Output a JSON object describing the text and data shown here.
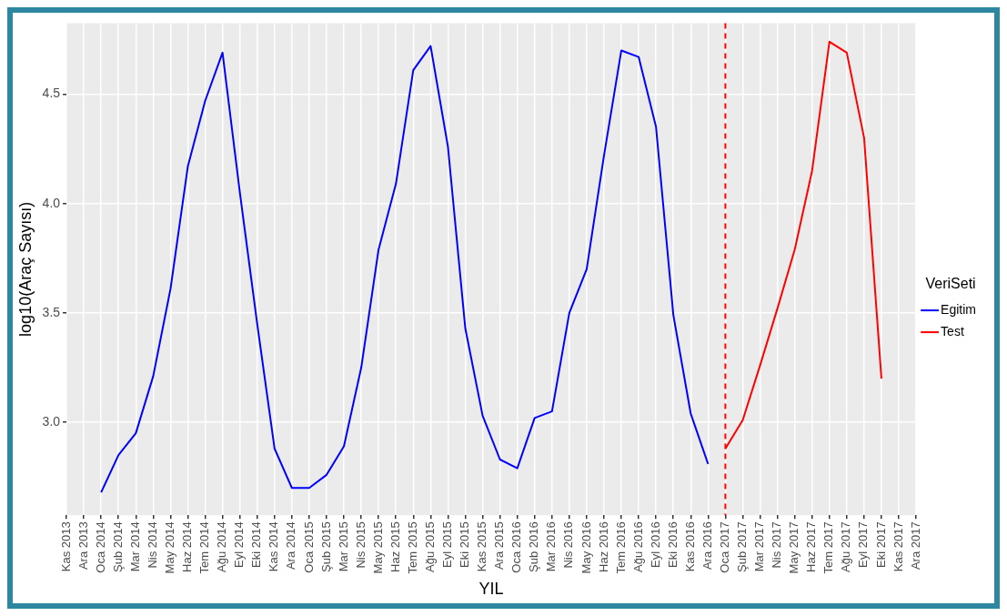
{
  "chart_data": {
    "type": "line",
    "xlabel": "YIL",
    "ylabel": "log10(Araç Sayısı)",
    "legend_title": "VeriSeti",
    "legend": "right",
    "grid": true,
    "marker": "none",
    "line_style": "solid",
    "categories": [
      "Kas 2013",
      "Ara 2013",
      "Oca 2014",
      "Şub 2014",
      "Mar 2014",
      "Nis 2014",
      "May 2014",
      "Haz 2014",
      "Tem 2014",
      "Ağu 2014",
      "Eyl 2014",
      "Eki 2014",
      "Kas 2014",
      "Ara 2014",
      "Oca 2015",
      "Şub 2015",
      "Mar 2015",
      "Nis 2015",
      "May 2015",
      "Haz 2015",
      "Tem 2015",
      "Ağu 2015",
      "Eyl 2015",
      "Eki 2015",
      "Kas 2015",
      "Ara 2015",
      "Oca 2016",
      "Şub 2016",
      "Mar 2016",
      "Nis 2016",
      "May 2016",
      "Haz 2016",
      "Tem 2016",
      "Ağu 2016",
      "Eyl 2016",
      "Eki 2016",
      "Kas 2016",
      "Ara 2016",
      "Oca 2017",
      "Şub 2017",
      "Mar 2017",
      "Nis 2017",
      "May 2017",
      "Haz 2017",
      "Tem 2017",
      "Ağu 2017",
      "Eyl 2017",
      "Eki 2017",
      "Kas 2017",
      "Ara 2017"
    ],
    "ylim": [
      2.575,
      4.825
    ],
    "yticks": [
      {
        "value": 3,
        "label": "3.0"
      },
      {
        "value": 3.5,
        "label": "3.5"
      },
      {
        "value": 4,
        "label": "4.0"
      },
      {
        "value": 4.5,
        "label": "4.5"
      }
    ],
    "series": [
      {
        "name": "Egitim",
        "color": "#0000ff",
        "values": [
          null,
          null,
          2.68,
          2.85,
          2.95,
          3.21,
          3.61,
          4.17,
          4.47,
          4.69,
          4.05,
          3.45,
          2.88,
          2.7,
          2.7,
          2.76,
          2.89,
          3.25,
          3.79,
          4.09,
          4.61,
          4.72,
          4.26,
          3.43,
          3.03,
          2.83,
          2.79,
          3.02,
          3.05,
          3.5,
          3.7,
          4.22,
          4.7,
          4.67,
          4.35,
          3.49,
          3.04,
          2.81,
          null,
          null,
          null,
          null,
          null,
          null,
          null,
          null,
          null,
          null,
          null,
          null
        ]
      },
      {
        "name": "Test",
        "color": "#ff0000",
        "values": [
          null,
          null,
          null,
          null,
          null,
          null,
          null,
          null,
          null,
          null,
          null,
          null,
          null,
          null,
          null,
          null,
          null,
          null,
          null,
          null,
          null,
          null,
          null,
          null,
          null,
          null,
          null,
          null,
          null,
          null,
          null,
          null,
          null,
          null,
          null,
          null,
          null,
          null,
          2.88,
          3.01,
          3.26,
          3.52,
          3.79,
          4.15,
          4.74,
          4.69,
          4.3,
          3.2,
          null,
          null
        ]
      }
    ],
    "ref_lines": [
      {
        "axis": "x",
        "value": "Oca 2017",
        "color": "#ff0000",
        "line_style": "dashed"
      }
    ]
  }
}
